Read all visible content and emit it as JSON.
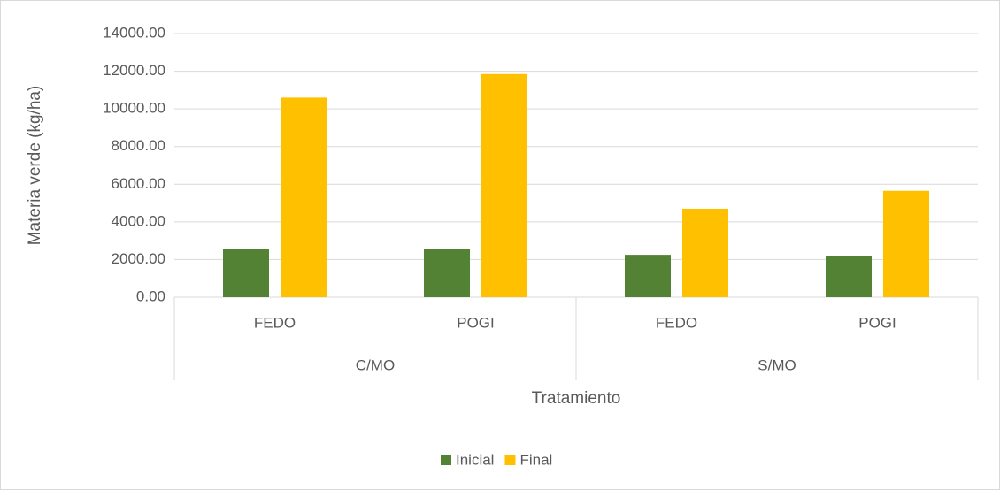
{
  "chart_data": {
    "type": "bar",
    "xlabel": "Tratamiento",
    "ylabel": "Materia verde (kg/ha)",
    "categories": [
      "FEDO",
      "POGI",
      "FEDO",
      "POGI"
    ],
    "groups": [
      "C/MO",
      "S/MO"
    ],
    "series": [
      {
        "name": "Inicial",
        "color": "#548235",
        "values": [
          2550,
          2550,
          2250,
          2200
        ]
      },
      {
        "name": "Final",
        "color": "#ffc000",
        "values": [
          10600,
          11850,
          4700,
          5650
        ]
      }
    ],
    "ylim": [
      0,
      14000
    ],
    "yticks": [
      {
        "value": 0,
        "label": "0.00"
      },
      {
        "value": 2000,
        "label": "2000.00"
      },
      {
        "value": 4000,
        "label": "4000.00"
      },
      {
        "value": 6000,
        "label": "6000.00"
      },
      {
        "value": 8000,
        "label": "8000.00"
      },
      {
        "value": 10000,
        "label": "10000.00"
      },
      {
        "value": 12000,
        "label": "12000.00"
      },
      {
        "value": 14000,
        "label": "14000.00"
      }
    ],
    "grid": true,
    "legend": "bottom"
  }
}
